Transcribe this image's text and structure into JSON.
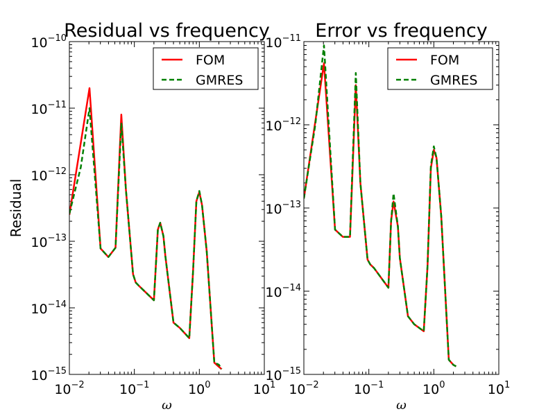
{
  "chart_data": [
    {
      "type": "line",
      "title": "Residual vs frequency",
      "xlabel": "ω",
      "ylabel": "Residual",
      "xscale": "log",
      "yscale": "log",
      "xlim": [
        0.01,
        10
      ],
      "ylim": [
        1e-15,
        1e-10
      ],
      "xticks": [
        {
          "base": "10",
          "exp": "−2"
        },
        {
          "base": "10",
          "exp": "−1"
        },
        {
          "base": "10",
          "exp": "0"
        },
        {
          "base": "10",
          "exp": "1"
        }
      ],
      "yticks": [
        {
          "base": "10",
          "exp": "−15"
        },
        {
          "base": "10",
          "exp": "−14"
        },
        {
          "base": "10",
          "exp": "−13"
        },
        {
          "base": "10",
          "exp": "−12"
        },
        {
          "base": "10",
          "exp": "−11"
        },
        {
          "base": "10",
          "exp": "−10"
        }
      ],
      "legend": "top-right",
      "series": [
        {
          "name": "FOM",
          "color": "#ff0000",
          "style": "solid",
          "x": [
            0.01,
            0.0204,
            0.0302,
            0.0398,
            0.0513,
            0.063,
            0.0741,
            0.0955,
            0.105,
            0.12,
            0.2,
            0.23,
            0.25,
            0.28,
            0.3,
            0.4,
            0.5,
            0.7,
            0.8,
            0.9,
            1.0,
            1.1,
            1.3,
            1.7,
            2.0,
            2.2
          ],
          "y": [
            2.5e-13,
            2e-11,
            7.8e-14,
            5.8e-14,
            8e-14,
            8e-12,
            6e-13,
            3.2e-14,
            2.4e-14,
            2.1e-14,
            1.3e-14,
            1.5e-13,
            1.9e-13,
            1.2e-13,
            6e-14,
            6e-15,
            5e-15,
            3.5e-15,
            3.5e-14,
            4e-13,
            5.5e-13,
            3.5e-13,
            7e-14,
            1.5e-15,
            1.3e-15,
            1.2e-15
          ]
        },
        {
          "name": "GMRES",
          "color": "#008000",
          "style": "dashed",
          "x": [
            0.01,
            0.015,
            0.0204,
            0.0302,
            0.0398,
            0.0513,
            0.063,
            0.0741,
            0.0955,
            0.105,
            0.12,
            0.2,
            0.23,
            0.25,
            0.28,
            0.3,
            0.4,
            0.5,
            0.7,
            0.8,
            0.9,
            1.0,
            1.1,
            1.3,
            1.7,
            2.0,
            2.2
          ],
          "y": [
            2.6e-13,
            1.3e-12,
            1e-11,
            7.8e-14,
            5.8e-14,
            8e-14,
            6e-12,
            6e-13,
            3.2e-14,
            2.4e-14,
            2.1e-14,
            1.3e-14,
            1.5e-13,
            1.9e-13,
            1.2e-13,
            6e-14,
            6e-15,
            5e-15,
            3.5e-15,
            3.5e-14,
            4e-13,
            5.7e-13,
            3.5e-13,
            7e-14,
            1.5e-15,
            1.4e-15,
            1.2e-15
          ]
        }
      ]
    },
    {
      "type": "line",
      "title": "Error vs frequency",
      "xlabel": "ω",
      "ylabel": "",
      "xscale": "log",
      "yscale": "log",
      "xlim": [
        0.01,
        10
      ],
      "ylim": [
        1e-15,
        1e-11
      ],
      "xticks": [
        {
          "base": "10",
          "exp": "−2"
        },
        {
          "base": "10",
          "exp": "−1"
        },
        {
          "base": "10",
          "exp": "0"
        },
        {
          "base": "10",
          "exp": "1"
        }
      ],
      "yticks": [
        {
          "base": "10",
          "exp": "−15"
        },
        {
          "base": "10",
          "exp": "−14"
        },
        {
          "base": "10",
          "exp": "−13"
        },
        {
          "base": "10",
          "exp": "−12"
        },
        {
          "base": "10",
          "exp": "−11"
        }
      ],
      "legend": "top-right",
      "series": [
        {
          "name": "FOM",
          "color": "#ff0000",
          "style": "solid",
          "x": [
            0.01,
            0.0204,
            0.0302,
            0.0398,
            0.0513,
            0.063,
            0.0741,
            0.0955,
            0.105,
            0.12,
            0.2,
            0.22,
            0.24,
            0.28,
            0.3,
            0.4,
            0.5,
            0.7,
            0.8,
            0.9,
            1.0,
            1.1,
            1.3,
            1.7,
            2.0,
            2.2
          ],
          "y": [
            1.3e-13,
            5.5e-12,
            5.5e-14,
            4.5e-14,
            4.5e-14,
            3e-12,
            2e-13,
            2.4e-14,
            2.1e-14,
            1.9e-14,
            1.1e-14,
            7e-14,
            1.2e-13,
            6e-14,
            2.5e-14,
            5e-15,
            4e-15,
            3.3e-15,
            2e-14,
            3e-13,
            5e-13,
            4e-13,
            8e-14,
            1.5e-15,
            1.3e-15,
            1.25e-15
          ]
        },
        {
          "name": "GMRES",
          "color": "#008000",
          "style": "dashed",
          "x": [
            0.01,
            0.015,
            0.0204,
            0.0302,
            0.0398,
            0.0513,
            0.063,
            0.0741,
            0.0955,
            0.105,
            0.12,
            0.2,
            0.22,
            0.24,
            0.28,
            0.3,
            0.4,
            0.5,
            0.7,
            0.8,
            0.9,
            1.0,
            1.1,
            1.3,
            1.7,
            2.0,
            2.2
          ],
          "y": [
            1.3e-13,
            1e-12,
            9e-12,
            5.5e-14,
            4.5e-14,
            4.5e-14,
            4.2e-12,
            2e-13,
            2.4e-14,
            2.1e-14,
            1.9e-14,
            1.1e-14,
            7e-14,
            1.5e-13,
            6e-14,
            2.5e-14,
            5e-15,
            4e-15,
            3.3e-15,
            2e-14,
            3.2e-13,
            5.5e-13,
            4e-13,
            8e-14,
            1.5e-15,
            1.3e-15,
            1.25e-15
          ]
        }
      ]
    }
  ]
}
